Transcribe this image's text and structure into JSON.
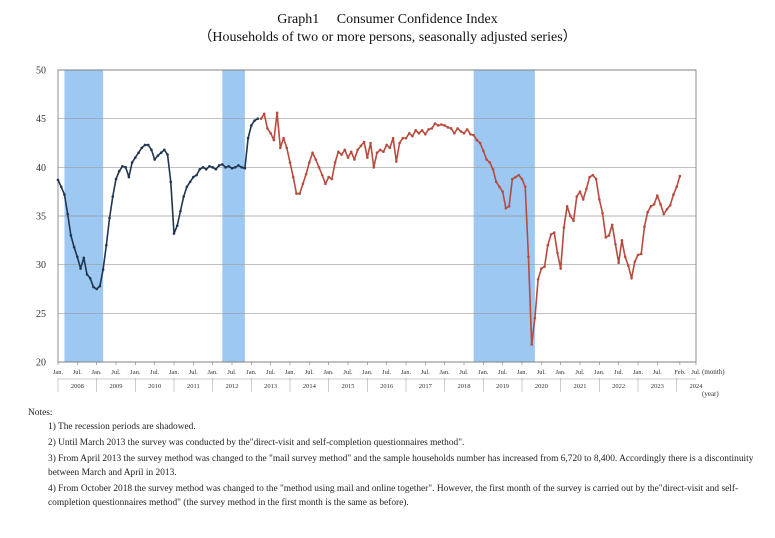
{
  "title": "Graph1　 Consumer Confidence Index",
  "subtitle": "（Households of two or more persons, seasonally adjusted series）",
  "chart_data": {
    "type": "line",
    "ylim": [
      20,
      50
    ],
    "yticks": [
      "20",
      "25",
      "30",
      "35",
      "40",
      "45",
      "50"
    ],
    "x_start": "2008-01",
    "x_end": "2024-07",
    "month_label": "(month)",
    "year_label": "(year)",
    "month_ticks": [
      {
        "x": "2008-01",
        "label": "Jan."
      },
      {
        "x": "2008-07",
        "label": "Jul."
      },
      {
        "x": "2009-01",
        "label": "Jan."
      },
      {
        "x": "2009-07",
        "label": "Jul."
      },
      {
        "x": "2010-01",
        "label": "Jan."
      },
      {
        "x": "2010-07",
        "label": "Jul."
      },
      {
        "x": "2011-01",
        "label": "Jan."
      },
      {
        "x": "2011-07",
        "label": "Jul."
      },
      {
        "x": "2012-01",
        "label": "Jan."
      },
      {
        "x": "2012-07",
        "label": "Jul."
      },
      {
        "x": "2013-01",
        "label": "Jan."
      },
      {
        "x": "2013-07",
        "label": "Jul."
      },
      {
        "x": "2014-01",
        "label": "Jan."
      },
      {
        "x": "2014-07",
        "label": "Jul."
      },
      {
        "x": "2015-01",
        "label": "Jan."
      },
      {
        "x": "2015-07",
        "label": "Jul."
      },
      {
        "x": "2016-01",
        "label": "Jan."
      },
      {
        "x": "2016-07",
        "label": "Jul."
      },
      {
        "x": "2017-01",
        "label": "Jan."
      },
      {
        "x": "2017-07",
        "label": "Jul."
      },
      {
        "x": "2018-01",
        "label": "Jan."
      },
      {
        "x": "2018-07",
        "label": "Jul."
      },
      {
        "x": "2019-01",
        "label": "Jan."
      },
      {
        "x": "2019-07",
        "label": "Jul."
      },
      {
        "x": "2020-01",
        "label": "Jan."
      },
      {
        "x": "2020-07",
        "label": "Jul."
      },
      {
        "x": "2021-01",
        "label": "Jan."
      },
      {
        "x": "2021-07",
        "label": "Jul."
      },
      {
        "x": "2022-01",
        "label": "Jan."
      },
      {
        "x": "2022-07",
        "label": "Jul."
      },
      {
        "x": "2023-01",
        "label": "Jan."
      },
      {
        "x": "2023-07",
        "label": "Jul."
      },
      {
        "x": "2024-02",
        "label": "Feb."
      },
      {
        "x": "2024-07",
        "label": "Jul."
      }
    ],
    "year_ticks": [
      "2008",
      "2009",
      "2010",
      "2011",
      "2012",
      "2013",
      "2014",
      "2015",
      "2016",
      "2017",
      "2018",
      "2019",
      "2020",
      "2021",
      "2022",
      "2023",
      "2024"
    ],
    "recessions": [
      {
        "start": "2008-03",
        "end": "2009-03"
      },
      {
        "start": "2012-04",
        "end": "2012-11"
      },
      {
        "start": "2018-10",
        "end": "2020-05"
      }
    ],
    "series": [
      {
        "color": "#1f3550",
        "points": [
          [
            "2008-01",
            38.7
          ],
          [
            "2008-02",
            38.0
          ],
          [
            "2008-03",
            37.2
          ],
          [
            "2008-04",
            35.2
          ],
          [
            "2008-05",
            33.0
          ],
          [
            "2008-06",
            31.8
          ],
          [
            "2008-07",
            30.8
          ],
          [
            "2008-08",
            29.6
          ],
          [
            "2008-09",
            30.7
          ],
          [
            "2008-10",
            29.0
          ],
          [
            "2008-11",
            28.6
          ],
          [
            "2008-12",
            27.7
          ],
          [
            "2009-01",
            27.5
          ],
          [
            "2009-02",
            27.8
          ],
          [
            "2009-03",
            29.5
          ],
          [
            "2009-04",
            32.0
          ],
          [
            "2009-05",
            34.8
          ],
          [
            "2009-06",
            37.0
          ],
          [
            "2009-07",
            38.8
          ],
          [
            "2009-08",
            39.6
          ],
          [
            "2009-09",
            40.1
          ],
          [
            "2009-10",
            40.0
          ],
          [
            "2009-11",
            39.0
          ],
          [
            "2009-12",
            40.5
          ],
          [
            "2010-01",
            41.0
          ],
          [
            "2010-02",
            41.5
          ],
          [
            "2010-03",
            42.0
          ],
          [
            "2010-04",
            42.3
          ],
          [
            "2010-05",
            42.3
          ],
          [
            "2010-06",
            41.8
          ],
          [
            "2010-07",
            40.8
          ],
          [
            "2010-08",
            41.2
          ],
          [
            "2010-09",
            41.5
          ],
          [
            "2010-10",
            41.8
          ],
          [
            "2010-11",
            41.3
          ],
          [
            "2010-12",
            38.5
          ],
          [
            "2011-01",
            33.2
          ],
          [
            "2011-02",
            34.0
          ],
          [
            "2011-03",
            35.5
          ],
          [
            "2011-04",
            37.0
          ],
          [
            "2011-05",
            38.0
          ],
          [
            "2011-06",
            38.5
          ],
          [
            "2011-07",
            39.0
          ],
          [
            "2011-08",
            39.2
          ],
          [
            "2011-09",
            39.8
          ],
          [
            "2011-10",
            40.0
          ],
          [
            "2011-11",
            39.8
          ],
          [
            "2011-12",
            40.1
          ],
          [
            "2012-01",
            40.0
          ],
          [
            "2012-02",
            39.8
          ],
          [
            "2012-03",
            40.2
          ],
          [
            "2012-04",
            40.3
          ],
          [
            "2012-05",
            40.0
          ],
          [
            "2012-06",
            40.1
          ],
          [
            "2012-07",
            39.9
          ],
          [
            "2012-08",
            40.0
          ],
          [
            "2012-09",
            40.2
          ],
          [
            "2012-10",
            40.0
          ],
          [
            "2012-11",
            39.9
          ],
          [
            "2012-12",
            43.0
          ],
          [
            "2013-01",
            44.3
          ],
          [
            "2013-02",
            44.8
          ],
          [
            "2013-03",
            45.0
          ]
        ]
      },
      {
        "color": "#b84a3e",
        "points": [
          [
            "2013-04",
            45.0
          ],
          [
            "2013-05",
            45.5
          ],
          [
            "2013-06",
            44.0
          ],
          [
            "2013-07",
            43.5
          ],
          [
            "2013-08",
            42.8
          ],
          [
            "2013-09",
            45.6
          ],
          [
            "2013-10",
            42.0
          ],
          [
            "2013-11",
            43.0
          ],
          [
            "2013-12",
            42.0
          ],
          [
            "2014-01",
            40.5
          ],
          [
            "2014-02",
            39.0
          ],
          [
            "2014-03",
            37.3
          ],
          [
            "2014-04",
            37.3
          ],
          [
            "2014-05",
            38.3
          ],
          [
            "2014-06",
            39.3
          ],
          [
            "2014-07",
            40.5
          ],
          [
            "2014-08",
            41.5
          ],
          [
            "2014-09",
            40.8
          ],
          [
            "2014-10",
            40.0
          ],
          [
            "2014-11",
            39.2
          ],
          [
            "2014-12",
            38.3
          ],
          [
            "2015-01",
            39.0
          ],
          [
            "2015-02",
            38.8
          ],
          [
            "2015-03",
            40.5
          ],
          [
            "2015-04",
            41.6
          ],
          [
            "2015-05",
            41.3
          ],
          [
            "2015-06",
            41.8
          ],
          [
            "2015-07",
            41.0
          ],
          [
            "2015-08",
            41.6
          ],
          [
            "2015-09",
            40.8
          ],
          [
            "2015-10",
            41.8
          ],
          [
            "2015-11",
            42.2
          ],
          [
            "2015-12",
            42.6
          ],
          [
            "2016-01",
            41.0
          ],
          [
            "2016-02",
            42.5
          ],
          [
            "2016-03",
            40.0
          ],
          [
            "2016-04",
            41.5
          ],
          [
            "2016-05",
            41.8
          ],
          [
            "2016-06",
            41.6
          ],
          [
            "2016-07",
            42.3
          ],
          [
            "2016-08",
            42.0
          ],
          [
            "2016-09",
            43.0
          ],
          [
            "2016-10",
            40.6
          ],
          [
            "2016-11",
            42.5
          ],
          [
            "2016-12",
            43.0
          ],
          [
            "2017-01",
            43.0
          ],
          [
            "2017-02",
            43.5
          ],
          [
            "2017-03",
            43.2
          ],
          [
            "2017-04",
            43.8
          ],
          [
            "2017-05",
            43.5
          ],
          [
            "2017-06",
            43.8
          ],
          [
            "2017-07",
            43.4
          ],
          [
            "2017-08",
            43.9
          ],
          [
            "2017-09",
            44.0
          ],
          [
            "2017-10",
            44.5
          ],
          [
            "2017-11",
            44.3
          ],
          [
            "2017-12",
            44.4
          ],
          [
            "2018-01",
            44.3
          ],
          [
            "2018-02",
            44.1
          ],
          [
            "2018-03",
            44.0
          ],
          [
            "2018-04",
            43.5
          ],
          [
            "2018-05",
            44.0
          ],
          [
            "2018-06",
            43.7
          ],
          [
            "2018-07",
            43.5
          ],
          [
            "2018-08",
            43.9
          ],
          [
            "2018-09",
            43.4
          ],
          [
            "2018-10",
            43.3
          ],
          [
            "2018-11",
            42.8
          ],
          [
            "2018-12",
            42.5
          ],
          [
            "2019-01",
            41.7
          ],
          [
            "2019-02",
            40.8
          ],
          [
            "2019-03",
            40.5
          ],
          [
            "2019-04",
            39.8
          ],
          [
            "2019-05",
            38.5
          ],
          [
            "2019-06",
            38.0
          ],
          [
            "2019-07",
            37.5
          ],
          [
            "2019-08",
            35.8
          ],
          [
            "2019-09",
            36.0
          ],
          [
            "2019-10",
            38.8
          ],
          [
            "2019-11",
            39.0
          ],
          [
            "2019-12",
            39.2
          ],
          [
            "2020-01",
            38.8
          ],
          [
            "2020-02",
            38.0
          ],
          [
            "2020-03",
            30.8
          ],
          [
            "2020-04",
            21.8
          ],
          [
            "2020-05",
            24.5
          ],
          [
            "2020-06",
            28.5
          ],
          [
            "2020-07",
            29.6
          ],
          [
            "2020-08",
            29.8
          ],
          [
            "2020-09",
            32.0
          ],
          [
            "2020-10",
            33.1
          ],
          [
            "2020-11",
            33.3
          ],
          [
            "2020-12",
            31.2
          ],
          [
            "2021-01",
            29.6
          ],
          [
            "2021-02",
            33.8
          ],
          [
            "2021-03",
            36.0
          ],
          [
            "2021-04",
            35.0
          ],
          [
            "2021-05",
            34.5
          ],
          [
            "2021-06",
            37.0
          ],
          [
            "2021-07",
            37.5
          ],
          [
            "2021-08",
            36.7
          ],
          [
            "2021-09",
            37.8
          ],
          [
            "2021-10",
            39.0
          ],
          [
            "2021-11",
            39.2
          ],
          [
            "2021-12",
            38.8
          ],
          [
            "2022-01",
            36.7
          ],
          [
            "2022-02",
            35.3
          ],
          [
            "2022-03",
            32.8
          ],
          [
            "2022-04",
            33.0
          ],
          [
            "2022-05",
            34.1
          ],
          [
            "2022-06",
            32.1
          ],
          [
            "2022-07",
            30.2
          ],
          [
            "2022-08",
            32.5
          ],
          [
            "2022-09",
            30.8
          ],
          [
            "2022-10",
            29.9
          ],
          [
            "2022-11",
            28.6
          ],
          [
            "2022-12",
            30.3
          ],
          [
            "2023-01",
            31.0
          ],
          [
            "2023-02",
            31.1
          ],
          [
            "2023-03",
            33.9
          ],
          [
            "2023-04",
            35.4
          ],
          [
            "2023-05",
            36.0
          ],
          [
            "2023-06",
            36.2
          ],
          [
            "2023-07",
            37.1
          ],
          [
            "2023-08",
            36.2
          ],
          [
            "2023-09",
            35.2
          ],
          [
            "2023-10",
            35.7
          ],
          [
            "2023-11",
            36.1
          ],
          [
            "2023-12",
            37.2
          ],
          [
            "2024-01",
            38.0
          ],
          [
            "2024-02",
            39.1
          ]
        ]
      }
    ]
  },
  "notes": {
    "heading": "Notes:",
    "items": [
      "1) The recession periods are shadowed.",
      "2) Until March 2013 the survey was conducted by the\"direct-visit and self-completion questionnaires method\".",
      "3) From April 2013 the survey method was changed to the \"mail survey method\" and the sample households number has increased from 6,720 to 8,400. Accordingly there is a discontinuity between March and April in 2013.",
      "4) From October 2018 the survey method was changed to the \"method using mail and online together\". However, the first month of the survey is carried out by the\"direct-visit and self-completion questionnaires method\" (the survey method in the first month is the same as before)."
    ]
  }
}
